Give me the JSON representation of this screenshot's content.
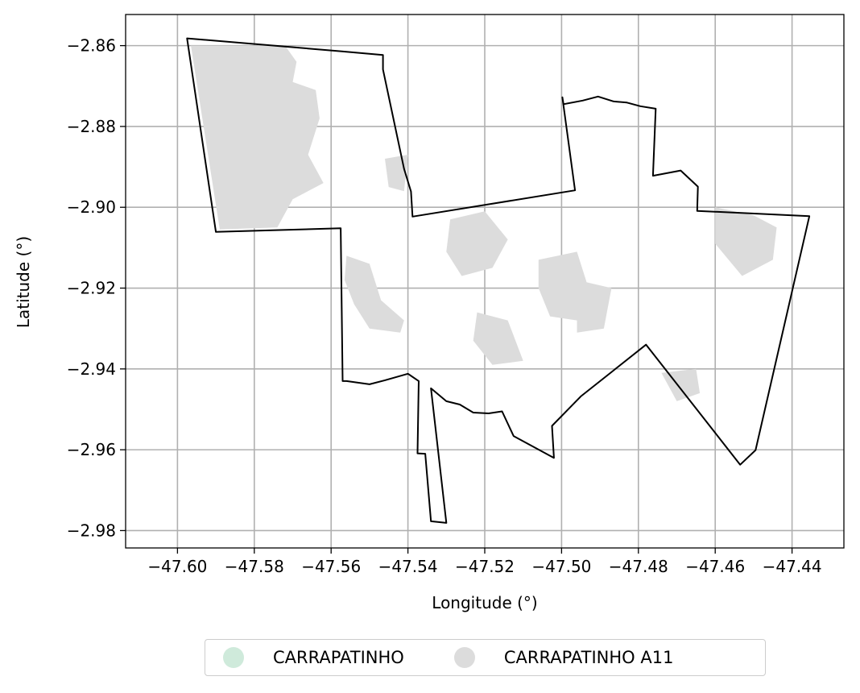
{
  "map": {
    "xlabel": "Longitude (°)",
    "ylabel": "Latitude (°)",
    "xlim": [
      -47.6135,
      -47.4265
    ],
    "ylim": [
      -2.9843,
      -2.8523
    ],
    "x_ticks": [
      -47.6,
      -47.58,
      -47.56,
      -47.54,
      -47.52,
      -47.5,
      -47.48,
      -47.46,
      -47.44
    ],
    "x_tick_labels": [
      "−47.60",
      "−47.58",
      "−47.56",
      "−47.54",
      "−47.52",
      "−47.50",
      "−47.48",
      "−47.46",
      "−47.44"
    ],
    "y_ticks": [
      -2.86,
      -2.88,
      -2.9,
      -2.92,
      -2.94,
      -2.96,
      -2.98
    ],
    "y_tick_labels": [
      "−2.86",
      "−2.88",
      "−2.90",
      "−2.92",
      "−2.94",
      "−2.96",
      "−2.98"
    ],
    "grid": true,
    "boundary_color": "#000000",
    "region_color": "#dcdcdc",
    "boundary_polygons": [
      [
        [
          -47.5975,
          -2.8582
        ],
        [
          -47.5575,
          -2.8614
        ],
        [
          -47.5465,
          -2.8623
        ],
        [
          -47.5465,
          -2.8659
        ],
        [
          -47.541,
          -2.8905
        ],
        [
          -47.5392,
          -2.8961
        ],
        [
          -47.5388,
          -2.9023
        ],
        [
          -47.4965,
          -2.8958
        ],
        [
          -47.4998,
          -2.8728
        ],
        [
          -47.4995,
          -2.8745
        ],
        [
          -47.4945,
          -2.8736
        ],
        [
          -47.4905,
          -2.8726
        ],
        [
          -47.4865,
          -2.8738
        ],
        [
          -47.483,
          -2.8741
        ],
        [
          -47.4795,
          -2.875
        ],
        [
          -47.4755,
          -2.8756
        ],
        [
          -47.4762,
          -2.8922
        ],
        [
          -47.469,
          -2.8909
        ],
        [
          -47.4645,
          -2.8949
        ],
        [
          -47.4647,
          -2.9009
        ],
        [
          -47.4355,
          -2.9022
        ],
        [
          -47.4495,
          -2.9601
        ],
        [
          -47.4535,
          -2.9637
        ],
        [
          -47.478,
          -2.934
        ],
        [
          -47.495,
          -2.9468
        ],
        [
          -47.5025,
          -2.9541
        ],
        [
          -47.502,
          -2.962
        ],
        [
          -47.5125,
          -2.9566
        ],
        [
          -47.5155,
          -2.9505
        ],
        [
          -47.519,
          -2.951
        ],
        [
          -47.523,
          -2.9508
        ],
        [
          -47.5265,
          -2.9488
        ],
        [
          -47.53,
          -2.948
        ],
        [
          -47.534,
          -2.9448
        ],
        [
          -47.53,
          -2.9781
        ],
        [
          -47.534,
          -2.9777
        ],
        [
          -47.5355,
          -2.961
        ],
        [
          -47.5375,
          -2.9609
        ],
        [
          -47.5372,
          -2.943
        ],
        [
          -47.54,
          -2.9412
        ],
        [
          -47.546,
          -2.9428
        ],
        [
          -47.55,
          -2.9438
        ],
        [
          -47.556,
          -2.943
        ],
        [
          -47.557,
          -2.943
        ],
        [
          -47.5575,
          -2.9052
        ],
        [
          -47.59,
          -2.9061
        ],
        [
          -47.5975,
          -2.8582
        ]
      ]
    ],
    "regions": [
      [
        [
          -47.5965,
          -2.86
        ],
        [
          -47.572,
          -2.86
        ],
        [
          -47.569,
          -2.864
        ],
        [
          -47.57,
          -2.869
        ],
        [
          -47.564,
          -2.871
        ],
        [
          -47.563,
          -2.878
        ],
        [
          -47.566,
          -2.887
        ],
        [
          -47.562,
          -2.894
        ],
        [
          -47.57,
          -2.898
        ],
        [
          -47.574,
          -2.905
        ],
        [
          -47.589,
          -2.9055
        ],
        [
          -47.5965,
          -2.86
        ]
      ],
      [
        [
          -47.556,
          -2.912
        ],
        [
          -47.55,
          -2.914
        ],
        [
          -47.547,
          -2.923
        ],
        [
          -47.541,
          -2.928
        ],
        [
          -47.542,
          -2.931
        ],
        [
          -47.55,
          -2.93
        ],
        [
          -47.554,
          -2.924
        ],
        [
          -47.5565,
          -2.918
        ],
        [
          -47.556,
          -2.912
        ]
      ],
      [
        [
          -47.529,
          -2.903
        ],
        [
          -47.52,
          -2.901
        ],
        [
          -47.514,
          -2.908
        ],
        [
          -47.518,
          -2.915
        ],
        [
          -47.526,
          -2.917
        ],
        [
          -47.53,
          -2.911
        ],
        [
          -47.529,
          -2.903
        ]
      ],
      [
        [
          -47.506,
          -2.913
        ],
        [
          -47.496,
          -2.911
        ],
        [
          -47.493,
          -2.92
        ],
        [
          -47.496,
          -2.928
        ],
        [
          -47.503,
          -2.927
        ],
        [
          -47.506,
          -2.92
        ],
        [
          -47.506,
          -2.913
        ]
      ],
      [
        [
          -47.496,
          -2.918
        ],
        [
          -47.487,
          -2.92
        ],
        [
          -47.489,
          -2.93
        ],
        [
          -47.496,
          -2.931
        ],
        [
          -47.496,
          -2.918
        ]
      ],
      [
        [
          -47.522,
          -2.926
        ],
        [
          -47.514,
          -2.928
        ],
        [
          -47.51,
          -2.938
        ],
        [
          -47.518,
          -2.939
        ],
        [
          -47.523,
          -2.933
        ],
        [
          -47.522,
          -2.926
        ]
      ],
      [
        [
          -47.46,
          -2.9
        ],
        [
          -47.45,
          -2.902
        ],
        [
          -47.444,
          -2.905
        ],
        [
          -47.445,
          -2.913
        ],
        [
          -47.453,
          -2.917
        ],
        [
          -47.46,
          -2.909
        ],
        [
          -47.46,
          -2.9
        ]
      ],
      [
        [
          -47.474,
          -2.941
        ],
        [
          -47.465,
          -2.94
        ],
        [
          -47.464,
          -2.946
        ],
        [
          -47.47,
          -2.948
        ],
        [
          -47.474,
          -2.941
        ]
      ],
      [
        [
          -47.546,
          -2.888
        ],
        [
          -47.54,
          -2.887
        ],
        [
          -47.541,
          -2.896
        ],
        [
          -47.545,
          -2.895
        ],
        [
          -47.546,
          -2.888
        ]
      ]
    ]
  },
  "legend": {
    "items": [
      {
        "label": "CARRAPATINHO",
        "color": "#cfeadb"
      },
      {
        "label": "CARRAPATINHO A11",
        "color": "#dcdcdc"
      }
    ]
  }
}
